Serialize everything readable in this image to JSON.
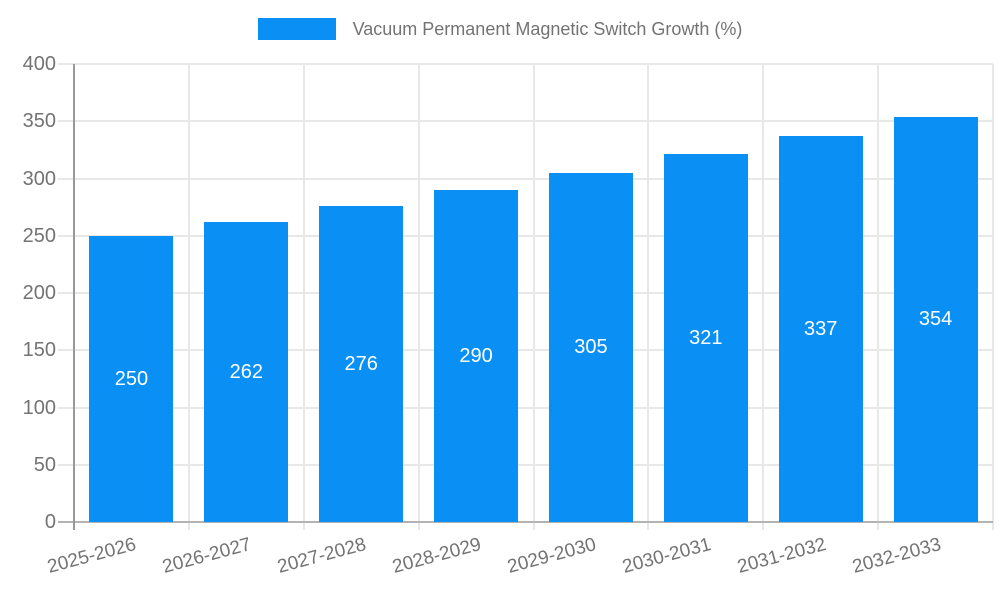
{
  "chart_data": {
    "type": "bar",
    "title": "Vacuum Permanent Magnetic Switch Growth (%)",
    "legend": {
      "position": "top",
      "entries": [
        "Vacuum Permanent Magnetic Switch Growth (%)"
      ]
    },
    "categories": [
      "2025-2026",
      "2026-2027",
      "2027-2028",
      "2028-2029",
      "2029-2030",
      "2030-2031",
      "2031-2032",
      "2032-2033"
    ],
    "series": [
      {
        "name": "Vacuum Permanent Magnetic Switch Growth (%)",
        "values": [
          250,
          262,
          276,
          290,
          305,
          321,
          337,
          354
        ]
      }
    ],
    "value_labels_shown": true,
    "xlabel": "",
    "ylabel": "",
    "ylim": [
      0,
      400
    ],
    "ytick_step": 50,
    "ytick_labels": [
      "0",
      "50",
      "100",
      "150",
      "200",
      "250",
      "300",
      "350",
      "400"
    ],
    "grid": true,
    "xtick_rotation_deg": -15
  },
  "colors": {
    "bar": "#0a90f5",
    "grid": "#e8e8e8",
    "y_axis_line": "#999999",
    "x_axis_line": "#b3b3b3",
    "tick_text": "#737373",
    "legend_text": "#737373",
    "value_label_text": "#ffffff",
    "background": "#ffffff"
  }
}
